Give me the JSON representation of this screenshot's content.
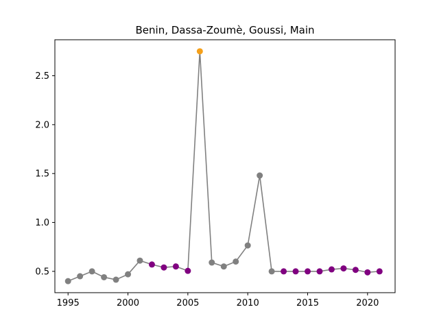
{
  "chart_data": {
    "type": "line",
    "title": "Benin, Dassa-Zoumè, Goussi, Main",
    "xlabel": "",
    "ylabel": "",
    "xlim": [
      1993.9,
      2022.3
    ],
    "ylim": [
      0.282,
      2.868
    ],
    "x_ticks": [
      1995,
      2000,
      2005,
      2010,
      2015,
      2020
    ],
    "y_ticks": [
      0.5,
      1.0,
      1.5,
      2.0,
      2.5
    ],
    "y_tick_labels": [
      "0.5",
      "1.0",
      "1.5",
      "2.0",
      "2.5"
    ],
    "grid": false,
    "line_color": "#808080",
    "series": [
      {
        "points": [
          {
            "x": 1995,
            "y": 0.4,
            "color": "#808080"
          },
          {
            "x": 1996,
            "y": 0.45,
            "color": "#808080"
          },
          {
            "x": 1997,
            "y": 0.5,
            "color": "#808080"
          },
          {
            "x": 1998,
            "y": 0.44,
            "color": "#808080"
          },
          {
            "x": 1999,
            "y": 0.415,
            "color": "#808080"
          },
          {
            "x": 2000,
            "y": 0.47,
            "color": "#808080"
          },
          {
            "x": 2001,
            "y": 0.61,
            "color": "#808080"
          },
          {
            "x": 2002,
            "y": 0.57,
            "color": "#800080"
          },
          {
            "x": 2003,
            "y": 0.54,
            "color": "#800080"
          },
          {
            "x": 2004,
            "y": 0.55,
            "color": "#800080"
          },
          {
            "x": 2005,
            "y": 0.505,
            "color": "#800080"
          },
          {
            "x": 2006,
            "y": 2.75,
            "color": "#f5a01a"
          },
          {
            "x": 2007,
            "y": 0.59,
            "color": "#808080"
          },
          {
            "x": 2008,
            "y": 0.55,
            "color": "#808080"
          },
          {
            "x": 2009,
            "y": 0.6,
            "color": "#808080"
          },
          {
            "x": 2010,
            "y": 0.765,
            "color": "#808080"
          },
          {
            "x": 2011,
            "y": 1.48,
            "color": "#808080"
          },
          {
            "x": 2012,
            "y": 0.5,
            "color": "#808080"
          },
          {
            "x": 2013,
            "y": 0.5,
            "color": "#800080"
          },
          {
            "x": 2014,
            "y": 0.5,
            "color": "#800080"
          },
          {
            "x": 2015,
            "y": 0.5,
            "color": "#800080"
          },
          {
            "x": 2016,
            "y": 0.5,
            "color": "#800080"
          },
          {
            "x": 2017,
            "y": 0.52,
            "color": "#800080"
          },
          {
            "x": 2018,
            "y": 0.53,
            "color": "#800080"
          },
          {
            "x": 2019,
            "y": 0.515,
            "color": "#800080"
          },
          {
            "x": 2020,
            "y": 0.49,
            "color": "#800080"
          },
          {
            "x": 2021,
            "y": 0.5,
            "color": "#800080"
          }
        ]
      }
    ]
  }
}
